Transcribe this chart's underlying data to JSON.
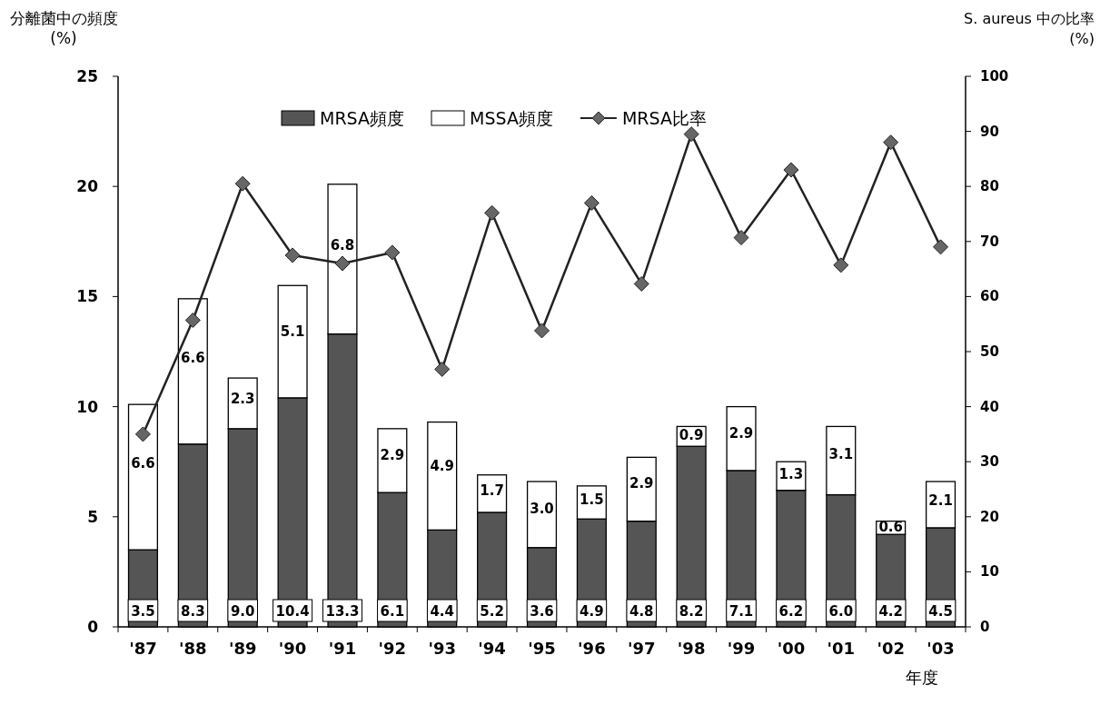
{
  "chart_data": {
    "type": "bar",
    "stacked": true,
    "categories": [
      "'87",
      "'88",
      "'89",
      "'90",
      "'91",
      "'92",
      "'93",
      "'94",
      "'95",
      "'96",
      "'97",
      "'98",
      "'99",
      "'00",
      "'01",
      "'02",
      "'03"
    ],
    "series": [
      {
        "name": "MRSA頻度",
        "color": "#555555",
        "values": [
          3.5,
          8.3,
          9.0,
          10.4,
          13.3,
          6.1,
          4.4,
          5.2,
          3.6,
          4.9,
          4.8,
          8.2,
          7.1,
          6.2,
          6.0,
          4.2,
          4.5
        ],
        "value_labels": [
          "3.5",
          "8.3",
          "9.0",
          "10.4",
          "13.3",
          "6.1",
          "4.4",
          "5.2",
          "3.6",
          "4.9",
          "4.8",
          "8.2",
          "7.1",
          "6.2",
          "6.0",
          "4.2",
          "4.5"
        ]
      },
      {
        "name": "MSSA頻度",
        "color": "#ffffff",
        "values": [
          6.6,
          6.6,
          2.3,
          5.1,
          6.8,
          2.9,
          4.9,
          1.7,
          3.0,
          1.5,
          2.9,
          0.9,
          2.9,
          1.3,
          3.1,
          0.6,
          2.1
        ],
        "value_labels": [
          "6.6",
          "6.6",
          "2.3",
          "5.1",
          "6.8",
          "2.9",
          "4.9",
          "1.7",
          "3.0",
          "1.5",
          "2.9",
          "0.9",
          "2.9",
          "1.3",
          "3.1",
          "0.6",
          "2.1"
        ]
      },
      {
        "name": "MRSA比率",
        "type": "line",
        "axis": "y2",
        "color": "#222222",
        "marker": "diamond",
        "values": [
          35,
          55.7,
          80.5,
          67.5,
          66,
          68,
          46.8,
          75.2,
          53.8,
          77,
          62.3,
          89.5,
          70.7,
          83,
          65.7,
          88,
          69
        ]
      }
    ],
    "ylabel": "分離菌中の頻度\n(%)",
    "y2label": "S. aureus 中の比率\n(%)",
    "xlabel": "年度",
    "ylim": [
      0,
      25
    ],
    "yticks": [
      0,
      5,
      10,
      15,
      20,
      25
    ],
    "y2lim": [
      0,
      100
    ],
    "y2ticks": [
      0,
      10,
      20,
      30,
      40,
      50,
      60,
      70,
      80,
      90,
      100
    ],
    "grid": false,
    "legend": "top"
  }
}
